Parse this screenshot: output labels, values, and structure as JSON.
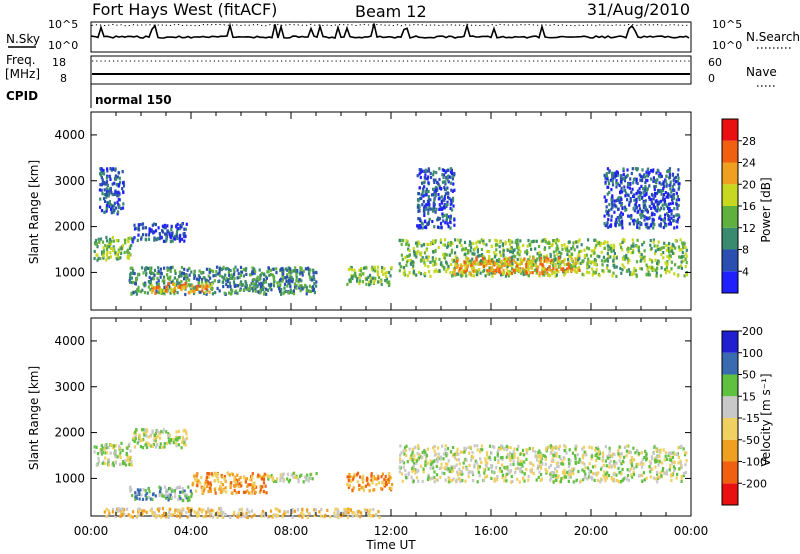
{
  "header": {
    "station": "Fort Hays West (fitACF)",
    "beam": "Beam 12",
    "date": "31/Aug/2010"
  },
  "params": {
    "nsky_label": "N.Sky",
    "nsearch_label": "N.Search",
    "freq_label_top": "Freq.",
    "freq_label_unit": "[MHz]",
    "nave_label": "Nave",
    "cpid_label": "CPID",
    "cpid_value": "normal 150",
    "nsky_ticks": [
      "10^5",
      "10^0"
    ],
    "nsearch_ticks": [
      "10^5",
      "10^0"
    ],
    "freq_ticks": [
      "18",
      "8"
    ],
    "nave_ticks": [
      "60",
      "0"
    ]
  },
  "colors": {
    "power": [
      "#2020ff",
      "#2a4fb0",
      "#3a8a70",
      "#60b040",
      "#c8d820",
      "#f0a020",
      "#f06010",
      "#e81010"
    ],
    "velocity": [
      "#e81010",
      "#f06010",
      "#f0a020",
      "#f0d060",
      "#c8c8c8",
      "#60c040",
      "#3a6ab0",
      "#2020d0"
    ]
  },
  "chart_data": [
    {
      "type": "heatmap",
      "name": "power",
      "xlabel": "",
      "ylabel": "Slant Range [km]",
      "ylim": [
        180,
        4500
      ],
      "y_ticks": [
        1000,
        2000,
        3000,
        4000
      ],
      "colorbar_label": "Power [dB]",
      "colorbar_ticks": [
        "4",
        "8",
        "12",
        "16",
        "20",
        "24",
        "28"
      ],
      "regions": [
        {
          "t0": 0.1,
          "t1": 1.6,
          "r0": 1300,
          "r1": 1800,
          "level": 3
        },
        {
          "t0": 1.6,
          "t1": 3.8,
          "r0": 1700,
          "r1": 2100,
          "level": 1
        },
        {
          "t0": 1.5,
          "t1": 9.0,
          "r0": 550,
          "r1": 1150,
          "level": 2
        },
        {
          "t0": 2.3,
          "t1": 4.8,
          "r0": 580,
          "r1": 800,
          "level": 5
        },
        {
          "t0": 10.2,
          "t1": 12.0,
          "r0": 750,
          "r1": 1150,
          "level": 3
        },
        {
          "t0": 12.3,
          "t1": 23.8,
          "r0": 950,
          "r1": 1750,
          "level": 3
        },
        {
          "t0": 14.5,
          "t1": 19.5,
          "r0": 1000,
          "r1": 1350,
          "level": 5
        },
        {
          "t0": 0.3,
          "t1": 1.3,
          "r0": 2300,
          "r1": 3300,
          "level": 1
        },
        {
          "t0": 13.0,
          "t1": 14.5,
          "r0": 2000,
          "r1": 3300,
          "level": 1
        },
        {
          "t0": 20.5,
          "t1": 23.5,
          "r0": 2000,
          "r1": 3300,
          "level": 1
        }
      ]
    },
    {
      "type": "heatmap",
      "name": "velocity",
      "xlabel": "Time UT",
      "ylabel": "Slant Range [km]",
      "ylim": [
        180,
        4500
      ],
      "y_ticks": [
        1000,
        2000,
        3000,
        4000
      ],
      "x_ticks": [
        "00:00",
        "04:00",
        "08:00",
        "12:00",
        "16:00",
        "20:00",
        "00:00"
      ],
      "xlim": [
        0,
        24
      ],
      "colorbar_label": "Velocity [m s⁻¹]",
      "colorbar_ticks": [
        "-200",
        "-100",
        "-50",
        "-15",
        "15",
        "50",
        "100",
        "200"
      ],
      "regions": [
        {
          "t0": 0.1,
          "t1": 1.6,
          "r0": 1300,
          "r1": 1800,
          "level": 4
        },
        {
          "t0": 1.6,
          "t1": 3.8,
          "r0": 1700,
          "r1": 2100,
          "level": 4
        },
        {
          "t0": 1.5,
          "t1": 4.0,
          "r0": 550,
          "r1": 850,
          "level": 5
        },
        {
          "t0": 4.0,
          "t1": 7.0,
          "r0": 700,
          "r1": 1150,
          "level": 2
        },
        {
          "t0": 7.0,
          "t1": 9.0,
          "r0": 950,
          "r1": 1150,
          "level": 4
        },
        {
          "t0": 10.2,
          "t1": 12.0,
          "r0": 750,
          "r1": 1150,
          "level": 2
        },
        {
          "t0": 12.3,
          "t1": 23.8,
          "r0": 950,
          "r1": 1750,
          "level": 4
        },
        {
          "t0": 0.5,
          "t1": 11.5,
          "r0": 180,
          "r1": 380,
          "level": 3
        }
      ]
    }
  ]
}
